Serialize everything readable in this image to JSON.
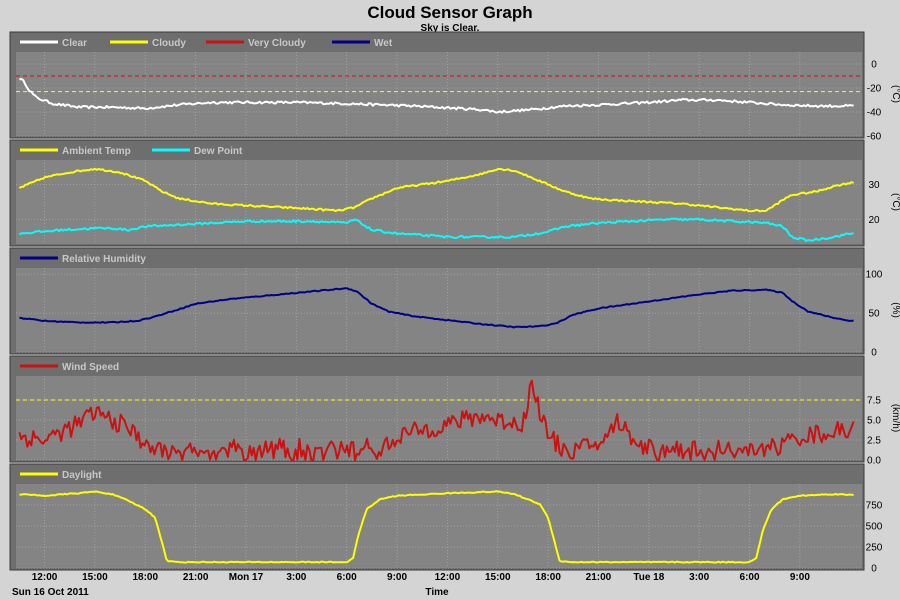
{
  "title": "Cloud Sensor Graph",
  "subtitle": "Sky is Clear.",
  "colors": {
    "plot_bg": "#848484",
    "panel_bg": "#6e6e6e",
    "grid": "#a8a8a8",
    "white": "#ffffff",
    "yellow": "#ffff00",
    "red": "#cc1111",
    "blue": "#00008b",
    "cyan": "#00ffff"
  },
  "x_axis": {
    "label": "Time",
    "date_label": "Sun 16 Oct 2011",
    "ticks": [
      "12:00",
      "15:00",
      "18:00",
      "21:00",
      "Mon 17",
      "3:00",
      "6:00",
      "9:00",
      "12:00",
      "15:00",
      "18:00",
      "21:00",
      "Tue 18",
      "3:00",
      "6:00",
      "9:00"
    ],
    "tick_hours": [
      0,
      3,
      6,
      9,
      12,
      15,
      18,
      21,
      24,
      27,
      30,
      33,
      36,
      39,
      42,
      45
    ],
    "range_hours": [
      -1.7,
      48.7
    ]
  },
  "chart_data": [
    {
      "type": "line",
      "panel": "cloud",
      "ylabel": "(°C)",
      "yticks": [
        "0",
        "-20",
        "-40",
        "-60"
      ],
      "ytick_values": [
        0,
        -20,
        -40,
        -60
      ],
      "ylim": [
        -60,
        10
      ],
      "thresholds": [
        {
          "value": -10,
          "color": "red"
        },
        {
          "value": -23,
          "color": "yellow"
        }
      ],
      "legend": [
        {
          "name": "Clear",
          "color": "white"
        },
        {
          "name": "Cloudy",
          "color": "yellow"
        },
        {
          "name": "Very Cloudy",
          "color": "red"
        },
        {
          "name": "Wet",
          "color": "blue"
        }
      ],
      "series": [
        {
          "name": "Clear",
          "color": "white",
          "noise": 1.0,
          "points": [
            [
              -1.5,
              -12
            ],
            [
              -1.2,
              -15
            ],
            [
              -0.9,
              -22
            ],
            [
              -0.5,
              -28
            ],
            [
              0.5,
              -33
            ],
            [
              2,
              -36
            ],
            [
              4,
              -36
            ],
            [
              6,
              -37
            ],
            [
              8,
              -34
            ],
            [
              10,
              -32
            ],
            [
              12,
              -32
            ],
            [
              15,
              -32
            ],
            [
              18,
              -33
            ],
            [
              22,
              -35
            ],
            [
              26,
              -38
            ],
            [
              27,
              -40
            ],
            [
              29,
              -38
            ],
            [
              31,
              -35
            ],
            [
              33,
              -34
            ],
            [
              36,
              -32
            ],
            [
              38,
              -30
            ],
            [
              40,
              -30
            ],
            [
              42,
              -32
            ],
            [
              44,
              -34
            ],
            [
              46,
              -35
            ],
            [
              48,
              -35
            ]
          ]
        }
      ]
    },
    {
      "type": "line",
      "panel": "temperature",
      "ylabel": "(°C)",
      "yticks": [
        "30",
        "20"
      ],
      "ytick_values": [
        30,
        20
      ],
      "ylim": [
        13,
        37
      ],
      "legend": [
        {
          "name": "Ambient Temp",
          "color": "yellow"
        },
        {
          "name": "Dew Point",
          "color": "cyan"
        }
      ],
      "series": [
        {
          "name": "Ambient Temp",
          "color": "yellow",
          "noise": 0.25,
          "points": [
            [
              -1.5,
              29
            ],
            [
              0,
              32
            ],
            [
              1.5,
              33.5
            ],
            [
              3,
              34.5
            ],
            [
              4.5,
              33.5
            ],
            [
              6,
              31
            ],
            [
              7,
              28
            ],
            [
              8,
              26
            ],
            [
              10,
              24.5
            ],
            [
              12,
              24
            ],
            [
              14,
              23.5
            ],
            [
              16,
              23
            ],
            [
              17.5,
              22.5
            ],
            [
              18.5,
              23.5
            ],
            [
              19.5,
              26
            ],
            [
              21,
              29
            ],
            [
              22.5,
              30
            ],
            [
              24,
              31
            ],
            [
              26,
              33
            ],
            [
              27,
              34.5
            ],
            [
              28,
              34
            ],
            [
              29.5,
              31
            ],
            [
              31,
              28
            ],
            [
              32.5,
              26
            ],
            [
              34,
              25.5
            ],
            [
              36,
              25
            ],
            [
              38,
              24.5
            ],
            [
              40,
              23.5
            ],
            [
              42,
              22.5
            ],
            [
              43,
              22.5
            ],
            [
              43.8,
              25
            ],
            [
              44.5,
              27
            ],
            [
              46,
              28
            ],
            [
              47,
              29.5
            ],
            [
              48,
              30.5
            ]
          ]
        },
        {
          "name": "Dew Point",
          "color": "cyan",
          "noise": 0.3,
          "points": [
            [
              -1.5,
              16
            ],
            [
              1,
              17
            ],
            [
              3,
              17.5
            ],
            [
              4,
              17.5
            ],
            [
              5,
              17
            ],
            [
              6,
              18
            ],
            [
              8,
              18.5
            ],
            [
              10,
              19
            ],
            [
              12,
              19.5
            ],
            [
              14,
              19.5
            ],
            [
              16,
              19.5
            ],
            [
              18,
              19
            ],
            [
              18.5,
              20
            ],
            [
              19.5,
              17
            ],
            [
              21,
              16
            ],
            [
              22.5,
              15.5
            ],
            [
              24,
              15
            ],
            [
              26,
              15
            ],
            [
              28,
              15
            ],
            [
              30,
              16.5
            ],
            [
              31,
              18
            ],
            [
              33,
              19
            ],
            [
              35,
              19.5
            ],
            [
              37,
              20
            ],
            [
              39,
              20
            ],
            [
              41,
              19.5
            ],
            [
              43,
              19
            ],
            [
              44,
              18
            ],
            [
              44.5,
              15
            ],
            [
              45.5,
              14
            ],
            [
              47,
              15
            ],
            [
              48,
              16
            ]
          ]
        }
      ]
    },
    {
      "type": "line",
      "panel": "humidity",
      "ylabel": "(%)",
      "yticks": [
        "100",
        "50",
        "0"
      ],
      "ytick_values": [
        100,
        50,
        0
      ],
      "ylim": [
        0,
        108
      ],
      "legend": [
        {
          "name": "Relative Humidity",
          "color": "blue"
        }
      ],
      "series": [
        {
          "name": "Relative Humidity",
          "color": "blue",
          "noise": 0.6,
          "points": [
            [
              -1.5,
              44
            ],
            [
              0,
              40
            ],
            [
              2,
              38
            ],
            [
              4,
              38
            ],
            [
              5.5,
              40
            ],
            [
              6.5,
              45
            ],
            [
              8,
              55
            ],
            [
              9,
              62
            ],
            [
              11,
              68
            ],
            [
              13,
              72
            ],
            [
              15,
              76
            ],
            [
              17,
              80
            ],
            [
              18,
              82
            ],
            [
              18.6,
              78
            ],
            [
              19.5,
              62
            ],
            [
              20.5,
              52
            ],
            [
              22,
              46
            ],
            [
              24,
              41
            ],
            [
              26,
              36
            ],
            [
              28,
              32
            ],
            [
              29.5,
              33
            ],
            [
              30.5,
              37
            ],
            [
              31.5,
              48
            ],
            [
              33,
              56
            ],
            [
              35,
              62
            ],
            [
              37,
              68
            ],
            [
              39,
              74
            ],
            [
              41,
              79
            ],
            [
              43,
              80
            ],
            [
              44,
              76
            ],
            [
              44.5,
              66
            ],
            [
              45.5,
              52
            ],
            [
              47,
              44
            ],
            [
              48,
              40
            ]
          ]
        }
      ]
    },
    {
      "type": "line",
      "panel": "wind",
      "ylabel": "(km/h)",
      "yticks": [
        "7.5",
        "5.0",
        "2.5",
        "0.0"
      ],
      "ytick_values": [
        7.5,
        5.0,
        2.5,
        0.0
      ],
      "ylim": [
        0,
        10.5
      ],
      "thresholds": [
        {
          "value": 7.5,
          "color": "yellow"
        }
      ],
      "legend": [
        {
          "name": "Wind Speed",
          "color": "red"
        }
      ],
      "series": [
        {
          "name": "Wind Speed",
          "color": "red",
          "noise": 1.2,
          "spiky": true,
          "points": [
            [
              -1.5,
              3
            ],
            [
              0,
              2.5
            ],
            [
              1,
              3.5
            ],
            [
              2,
              4.5
            ],
            [
              3,
              6
            ],
            [
              4,
              5
            ],
            [
              5,
              4
            ],
            [
              5.5,
              3
            ],
            [
              6,
              1.5
            ],
            [
              8,
              0.5
            ],
            [
              10,
              0.5
            ],
            [
              12,
              0.5
            ],
            [
              14,
              0.5
            ],
            [
              16,
              0.5
            ],
            [
              18,
              0.5
            ],
            [
              20,
              0.8
            ],
            [
              21,
              3
            ],
            [
              22,
              3.5
            ],
            [
              24,
              4.5
            ],
            [
              26,
              5.5
            ],
            [
              27,
              5
            ],
            [
              28.5,
              4.5
            ],
            [
              29,
              9.5
            ],
            [
              30,
              3
            ],
            [
              31,
              1
            ],
            [
              32,
              1.5
            ],
            [
              33.5,
              2.5
            ],
            [
              34,
              5
            ],
            [
              35,
              3
            ],
            [
              36,
              1
            ],
            [
              38,
              0.5
            ],
            [
              40,
              0.5
            ],
            [
              42,
              0.8
            ],
            [
              43,
              1
            ],
            [
              44,
              2
            ],
            [
              45,
              3
            ],
            [
              47,
              3.5
            ],
            [
              48,
              3.8
            ]
          ]
        }
      ]
    },
    {
      "type": "line",
      "panel": "daylight",
      "ylabel": "",
      "yticks": [
        "750",
        "500",
        "250",
        "0"
      ],
      "ytick_values": [
        750,
        500,
        250,
        0
      ],
      "ylim": [
        0,
        1000
      ],
      "legend": [
        {
          "name": "Daylight",
          "color": "yellow"
        }
      ],
      "series": [
        {
          "name": "Daylight",
          "color": "yellow",
          "noise": 6,
          "points": [
            [
              -1.5,
              880
            ],
            [
              0,
              860
            ],
            [
              2,
              890
            ],
            [
              3,
              910
            ],
            [
              4,
              880
            ],
            [
              5,
              800
            ],
            [
              6,
              700
            ],
            [
              6.6,
              600
            ],
            [
              7,
              300
            ],
            [
              7.3,
              80
            ],
            [
              8,
              70
            ],
            [
              12,
              70
            ],
            [
              16,
              70
            ],
            [
              18,
              70
            ],
            [
              18.4,
              120
            ],
            [
              18.7,
              400
            ],
            [
              19.2,
              700
            ],
            [
              20,
              820
            ],
            [
              21,
              860
            ],
            [
              24,
              890
            ],
            [
              27,
              910
            ],
            [
              28,
              880
            ],
            [
              29.5,
              760
            ],
            [
              30,
              600
            ],
            [
              30.4,
              300
            ],
            [
              30.7,
              80
            ],
            [
              31.5,
              70
            ],
            [
              36,
              70
            ],
            [
              40,
              70
            ],
            [
              42,
              70
            ],
            [
              42.4,
              120
            ],
            [
              42.8,
              450
            ],
            [
              43.3,
              700
            ],
            [
              44,
              820
            ],
            [
              45,
              860
            ],
            [
              47,
              880
            ],
            [
              48,
              870
            ]
          ]
        }
      ]
    }
  ]
}
